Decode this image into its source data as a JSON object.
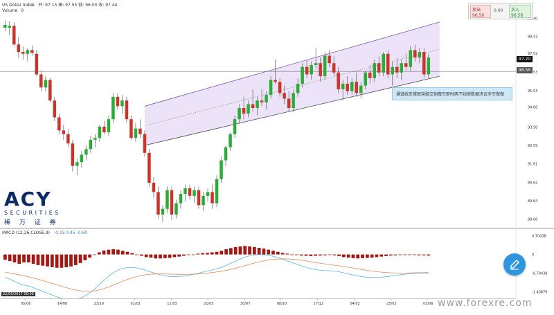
{
  "header": {
    "title": "US Dollar Index",
    "ohlc": "开: 97.15 高: 97.55 低: 96.00 收: 97.44",
    "volume_label": "Volume",
    "volume_value": "0"
  },
  "trade_panel": {
    "sell_label": "卖出",
    "sell_price": "96.56",
    "spread": "0.00",
    "buy_label": "买入",
    "buy_price": "96.56"
  },
  "price_tags": {
    "current": "97.20",
    "line": "96.56"
  },
  "annotation": "通道线支撑既突破立刻做空即时两下线继数据决议多空做做",
  "logo": {
    "brand": "ACY",
    "sub": "SECURITIES",
    "cn": "稀 万 证 券"
  },
  "macd_label": "MACD (12,26,CLOSE,9)",
  "macd_values": "-0.15  0.45  -0.60",
  "date_tag": "22/05/2017 00:00",
  "watermark": "www.forexre.com",
  "colors": {
    "up": "#2eaa3a",
    "down": "#c8352c",
    "channel": "#e6d9f6",
    "macd_hist": "#a11a16",
    "macd_line": "#e08a5a",
    "signal_line": "#5ab4e0"
  },
  "chart_data": [
    {
      "type": "candlestick",
      "title": "US Dollar Index",
      "y_ticks": [
        "99.40",
        "98.43",
        "97.52",
        "96.53",
        "95.53",
        "94.66",
        "93.58",
        "92.59",
        "91.61",
        "90.62",
        "89.64",
        "88.66"
      ],
      "ylim": [
        88.3,
        99.9
      ],
      "x_ticks": [
        "05/06",
        "14/08",
        "23/10",
        "01/01",
        "12/03",
        "21/05",
        "30/07",
        "08/10",
        "17/12",
        "04/02",
        "25/03",
        "03/06"
      ],
      "candles": [
        {
          "o": 98.9,
          "h": 99.3,
          "l": 98.7,
          "c": 99.05
        },
        {
          "o": 98.9,
          "h": 99.25,
          "l": 98.5,
          "c": 99.0
        },
        {
          "o": 99.0,
          "h": 99.2,
          "l": 97.9,
          "c": 98.0
        },
        {
          "o": 98.0,
          "h": 98.4,
          "l": 97.3,
          "c": 97.6
        },
        {
          "o": 97.6,
          "h": 97.9,
          "l": 97.2,
          "c": 97.5
        },
        {
          "o": 97.5,
          "h": 97.8,
          "l": 97.1,
          "c": 97.7
        },
        {
          "o": 97.7,
          "h": 97.95,
          "l": 97.4,
          "c": 97.55
        },
        {
          "o": 97.5,
          "h": 97.7,
          "l": 96.3,
          "c": 96.4
        },
        {
          "o": 96.4,
          "h": 96.6,
          "l": 95.5,
          "c": 95.7
        },
        {
          "o": 95.7,
          "h": 96.3,
          "l": 95.5,
          "c": 96.1
        },
        {
          "o": 96.1,
          "h": 96.2,
          "l": 94.9,
          "c": 95.0
        },
        {
          "o": 95.0,
          "h": 95.2,
          "l": 93.9,
          "c": 94.1
        },
        {
          "o": 94.1,
          "h": 94.3,
          "l": 93.2,
          "c": 93.4
        },
        {
          "o": 93.4,
          "h": 93.7,
          "l": 92.9,
          "c": 93.2
        },
        {
          "o": 93.2,
          "h": 93.5,
          "l": 92.5,
          "c": 92.7
        },
        {
          "o": 92.7,
          "h": 92.9,
          "l": 91.2,
          "c": 91.5
        },
        {
          "o": 91.5,
          "h": 91.9,
          "l": 91.0,
          "c": 91.7
        },
        {
          "o": 91.7,
          "h": 92.3,
          "l": 91.4,
          "c": 92.1
        },
        {
          "o": 92.1,
          "h": 92.6,
          "l": 91.8,
          "c": 92.4
        },
        {
          "o": 92.4,
          "h": 93.1,
          "l": 92.2,
          "c": 92.9
        },
        {
          "o": 92.9,
          "h": 93.2,
          "l": 92.5,
          "c": 93.0
        },
        {
          "o": 93.0,
          "h": 93.7,
          "l": 92.8,
          "c": 93.6
        },
        {
          "o": 93.6,
          "h": 93.9,
          "l": 93.2,
          "c": 93.3
        },
        {
          "o": 93.3,
          "h": 94.2,
          "l": 93.1,
          "c": 94.0
        },
        {
          "o": 94.0,
          "h": 95.4,
          "l": 93.8,
          "c": 95.2
        },
        {
          "o": 95.2,
          "h": 95.4,
          "l": 94.5,
          "c": 94.7
        },
        {
          "o": 94.7,
          "h": 95.3,
          "l": 94.3,
          "c": 95.0
        },
        {
          "o": 95.0,
          "h": 95.2,
          "l": 93.8,
          "c": 94.0
        },
        {
          "o": 94.0,
          "h": 94.2,
          "l": 92.9,
          "c": 93.0
        },
        {
          "o": 93.0,
          "h": 93.8,
          "l": 92.8,
          "c": 93.5
        },
        {
          "o": 93.5,
          "h": 94.0,
          "l": 93.0,
          "c": 93.2
        },
        {
          "o": 93.2,
          "h": 93.4,
          "l": 92.0,
          "c": 92.2
        },
        {
          "o": 92.2,
          "h": 92.4,
          "l": 90.4,
          "c": 90.6
        },
        {
          "o": 90.6,
          "h": 90.9,
          "l": 89.8,
          "c": 90.1
        },
        {
          "o": 90.1,
          "h": 90.4,
          "l": 88.7,
          "c": 88.9
        },
        {
          "o": 88.9,
          "h": 89.4,
          "l": 88.5,
          "c": 89.2
        },
        {
          "o": 89.2,
          "h": 90.4,
          "l": 89.0,
          "c": 90.2
        },
        {
          "o": 90.2,
          "h": 90.4,
          "l": 88.6,
          "c": 88.9
        },
        {
          "o": 88.9,
          "h": 89.7,
          "l": 88.7,
          "c": 89.5
        },
        {
          "o": 89.5,
          "h": 90.2,
          "l": 89.2,
          "c": 90.0
        },
        {
          "o": 90.0,
          "h": 90.5,
          "l": 89.6,
          "c": 90.3
        },
        {
          "o": 90.3,
          "h": 90.5,
          "l": 89.7,
          "c": 89.9
        },
        {
          "o": 89.9,
          "h": 90.4,
          "l": 89.5,
          "c": 90.2
        },
        {
          "o": 90.2,
          "h": 90.4,
          "l": 89.2,
          "c": 89.4
        },
        {
          "o": 89.4,
          "h": 90.1,
          "l": 89.1,
          "c": 89.9
        },
        {
          "o": 89.9,
          "h": 90.3,
          "l": 89.6,
          "c": 90.1
        },
        {
          "o": 90.1,
          "h": 90.5,
          "l": 89.2,
          "c": 89.5
        },
        {
          "o": 89.5,
          "h": 91.0,
          "l": 89.3,
          "c": 90.8
        },
        {
          "o": 90.8,
          "h": 92.0,
          "l": 90.6,
          "c": 91.8
        },
        {
          "o": 91.8,
          "h": 92.6,
          "l": 91.5,
          "c": 92.5
        },
        {
          "o": 92.5,
          "h": 93.3,
          "l": 92.3,
          "c": 93.2
        },
        {
          "o": 93.2,
          "h": 94.2,
          "l": 93.0,
          "c": 94.0
        },
        {
          "o": 94.0,
          "h": 94.8,
          "l": 93.8,
          "c": 94.6
        },
        {
          "o": 94.6,
          "h": 95.2,
          "l": 94.0,
          "c": 94.3
        },
        {
          "o": 94.3,
          "h": 95.0,
          "l": 94.1,
          "c": 94.8
        },
        {
          "o": 94.8,
          "h": 95.6,
          "l": 94.4,
          "c": 94.6
        },
        {
          "o": 94.6,
          "h": 95.2,
          "l": 94.2,
          "c": 95.0
        },
        {
          "o": 95.0,
          "h": 95.6,
          "l": 94.7,
          "c": 94.9
        },
        {
          "o": 94.9,
          "h": 95.5,
          "l": 94.5,
          "c": 95.3
        },
        {
          "o": 95.3,
          "h": 96.3,
          "l": 95.1,
          "c": 96.1
        },
        {
          "o": 96.1,
          "h": 97.2,
          "l": 95.9,
          "c": 96.0
        },
        {
          "o": 96.0,
          "h": 96.2,
          "l": 95.2,
          "c": 95.4
        },
        {
          "o": 95.4,
          "h": 95.8,
          "l": 94.8,
          "c": 95.1
        },
        {
          "o": 95.1,
          "h": 95.5,
          "l": 94.4,
          "c": 94.6
        },
        {
          "o": 94.6,
          "h": 95.6,
          "l": 94.4,
          "c": 95.4
        },
        {
          "o": 95.4,
          "h": 96.2,
          "l": 95.2,
          "c": 95.9
        },
        {
          "o": 95.9,
          "h": 97.0,
          "l": 95.7,
          "c": 96.8
        },
        {
          "o": 96.8,
          "h": 97.2,
          "l": 96.2,
          "c": 96.4
        },
        {
          "o": 96.4,
          "h": 97.1,
          "l": 96.1,
          "c": 96.9
        },
        {
          "o": 96.9,
          "h": 97.8,
          "l": 96.7,
          "c": 97.0
        },
        {
          "o": 97.0,
          "h": 97.3,
          "l": 96.0,
          "c": 96.3
        },
        {
          "o": 96.3,
          "h": 97.6,
          "l": 96.1,
          "c": 97.4
        },
        {
          "o": 97.4,
          "h": 97.7,
          "l": 96.8,
          "c": 97.0
        },
        {
          "o": 97.0,
          "h": 97.4,
          "l": 96.3,
          "c": 96.5
        },
        {
          "o": 96.5,
          "h": 96.8,
          "l": 95.4,
          "c": 95.6
        },
        {
          "o": 95.6,
          "h": 96.1,
          "l": 95.0,
          "c": 95.9
        },
        {
          "o": 95.9,
          "h": 96.3,
          "l": 95.3,
          "c": 95.5
        },
        {
          "o": 95.5,
          "h": 96.2,
          "l": 95.3,
          "c": 96.0
        },
        {
          "o": 96.0,
          "h": 96.5,
          "l": 95.2,
          "c": 95.4
        },
        {
          "o": 95.4,
          "h": 96.0,
          "l": 95.1,
          "c": 95.8
        },
        {
          "o": 95.8,
          "h": 96.6,
          "l": 95.6,
          "c": 96.5
        },
        {
          "o": 96.5,
          "h": 96.9,
          "l": 95.9,
          "c": 96.2
        },
        {
          "o": 96.2,
          "h": 97.2,
          "l": 96.0,
          "c": 97.0
        },
        {
          "o": 97.0,
          "h": 97.4,
          "l": 96.3,
          "c": 96.5
        },
        {
          "o": 96.5,
          "h": 97.6,
          "l": 96.3,
          "c": 97.5
        },
        {
          "o": 97.5,
          "h": 97.7,
          "l": 96.2,
          "c": 96.4
        },
        {
          "o": 96.4,
          "h": 97.1,
          "l": 95.8,
          "c": 96.8
        },
        {
          "o": 96.8,
          "h": 97.3,
          "l": 96.2,
          "c": 96.5
        },
        {
          "o": 96.5,
          "h": 97.2,
          "l": 96.1,
          "c": 97.0
        },
        {
          "o": 97.0,
          "h": 97.5,
          "l": 96.6,
          "c": 96.8
        },
        {
          "o": 96.8,
          "h": 97.9,
          "l": 96.6,
          "c": 97.7
        },
        {
          "o": 97.7,
          "h": 98.0,
          "l": 97.1,
          "c": 97.3
        },
        {
          "o": 97.3,
          "h": 97.8,
          "l": 97.0,
          "c": 97.6
        },
        {
          "o": 97.6,
          "h": 97.8,
          "l": 96.2,
          "c": 96.4
        },
        {
          "o": 96.4,
          "h": 97.5,
          "l": 96.2,
          "c": 97.3
        }
      ]
    },
    {
      "type": "bar",
      "title": "MACD (12,26,CLOSE,9)",
      "y_ticks": [
        "0.70438",
        "0",
        "-0.70438",
        "-1.40876"
      ],
      "ylim": [
        -1.6,
        0.9
      ],
      "series": [
        {
          "name": "-0.15",
          "values": [
            -0.2,
            -0.25,
            -0.3,
            -0.35,
            -0.3,
            -0.3,
            -0.35,
            -0.4,
            -0.42,
            -0.45,
            -0.48,
            -0.5,
            -0.5,
            -0.48,
            -0.45,
            -0.4,
            -0.32,
            -0.22,
            -0.12,
            -0.02,
            0.08,
            0.15,
            0.18,
            0.2,
            0.18,
            0.14,
            0.1,
            0.05,
            0.0,
            -0.05,
            -0.1,
            -0.12,
            -0.15,
            -0.15,
            -0.14,
            -0.13,
            -0.1,
            -0.08,
            -0.05,
            -0.02,
            0.0,
            0.03,
            0.05,
            0.06,
            0.08,
            0.1,
            0.14,
            0.2,
            0.24,
            0.28,
            0.3,
            0.32,
            0.3,
            0.28,
            0.25,
            0.22,
            0.18,
            0.14,
            0.1,
            0.06,
            0.03,
            0.0,
            -0.02,
            -0.04,
            -0.05,
            -0.06,
            -0.05,
            -0.04,
            -0.03,
            -0.02,
            -0.03,
            -0.06,
            -0.1,
            -0.12,
            -0.14,
            -0.15,
            -0.14,
            -0.13,
            -0.12,
            -0.1,
            -0.08,
            -0.06,
            -0.04,
            -0.03,
            -0.02,
            -0.02,
            -0.01,
            -0.02,
            -0.03,
            -0.03,
            -0.04
          ]
        }
      ]
    }
  ]
}
